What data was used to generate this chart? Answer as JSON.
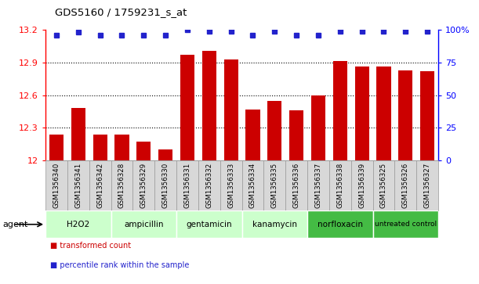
{
  "title": "GDS5160 / 1759231_s_at",
  "samples": [
    "GSM1356340",
    "GSM1356341",
    "GSM1356342",
    "GSM1356328",
    "GSM1356329",
    "GSM1356330",
    "GSM1356331",
    "GSM1356332",
    "GSM1356333",
    "GSM1356334",
    "GSM1356335",
    "GSM1356336",
    "GSM1356337",
    "GSM1356338",
    "GSM1356339",
    "GSM1356325",
    "GSM1356326",
    "GSM1356327"
  ],
  "bar_values": [
    12.24,
    12.48,
    12.24,
    12.24,
    12.17,
    12.1,
    12.97,
    13.01,
    12.93,
    12.47,
    12.55,
    12.46,
    12.6,
    12.91,
    12.86,
    12.86,
    12.83,
    12.82
  ],
  "percentile_values": [
    96,
    98,
    96,
    96,
    96,
    96,
    100,
    99,
    99,
    96,
    99,
    96,
    96,
    99,
    99,
    99,
    99,
    99
  ],
  "groups": [
    {
      "label": "H2O2",
      "start": 0,
      "end": 3,
      "light": true
    },
    {
      "label": "ampicillin",
      "start": 3,
      "end": 6,
      "light": true
    },
    {
      "label": "gentamicin",
      "start": 6,
      "end": 9,
      "light": true
    },
    {
      "label": "kanamycin",
      "start": 9,
      "end": 12,
      "light": true
    },
    {
      "label": "norfloxacin",
      "start": 12,
      "end": 15,
      "light": false
    },
    {
      "label": "untreated control",
      "start": 15,
      "end": 18,
      "light": false
    }
  ],
  "group_color_light": "#ccffcc",
  "group_color_dark": "#44bb44",
  "bar_color": "#cc0000",
  "dot_color": "#2222cc",
  "ymin": 12.0,
  "ymax": 13.2,
  "yticks": [
    12.0,
    12.3,
    12.6,
    12.9,
    13.2
  ],
  "ytick_labels": [
    "12",
    "12.3",
    "12.6",
    "12.9",
    "13.2"
  ],
  "right_yticks": [
    0,
    25,
    50,
    75,
    100
  ],
  "right_ytick_labels": [
    "0",
    "25",
    "50",
    "75",
    "100%"
  ],
  "legend_items": [
    {
      "label": "transformed count",
      "color": "#cc0000"
    },
    {
      "label": "percentile rank within the sample",
      "color": "#2222cc"
    }
  ],
  "agent_label": "agent"
}
